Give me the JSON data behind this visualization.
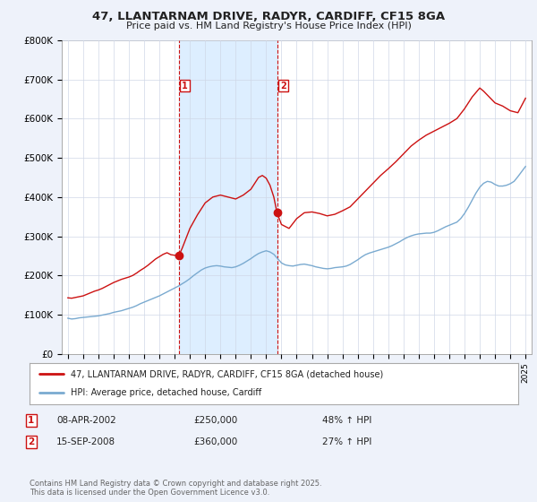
{
  "title": "47, LLANTARNAM DRIVE, RADYR, CARDIFF, CF15 8GA",
  "subtitle": "Price paid vs. HM Land Registry's House Price Index (HPI)",
  "ylim": [
    0,
    800000
  ],
  "yticks": [
    0,
    100000,
    200000,
    300000,
    400000,
    500000,
    600000,
    700000,
    800000
  ],
  "ytick_labels": [
    "£0",
    "£100K",
    "£200K",
    "£300K",
    "£400K",
    "£500K",
    "£600K",
    "£700K",
    "£800K"
  ],
  "xlim_start": 1994.6,
  "xlim_end": 2025.4,
  "background_color": "#eef2fa",
  "plot_bg_color": "#ffffff",
  "grid_color": "#d0d8e8",
  "red_line_color": "#cc1111",
  "blue_line_color": "#7aaad0",
  "vline_color": "#cc1111",
  "shade_color": "#ddeeff",
  "marker1_x": 2002.27,
  "marker2_x": 2008.71,
  "marker1_y": 250000,
  "marker2_y": 360000,
  "transaction1": {
    "label": "1",
    "date": "08-APR-2002",
    "price": "£250,000",
    "hpi": "48% ↑ HPI"
  },
  "transaction2": {
    "label": "2",
    "date": "15-SEP-2008",
    "price": "£360,000",
    "hpi": "27% ↑ HPI"
  },
  "legend_line1": "47, LLANTARNAM DRIVE, RADYR, CARDIFF, CF15 8GA (detached house)",
  "legend_line2": "HPI: Average price, detached house, Cardiff",
  "footer": "Contains HM Land Registry data © Crown copyright and database right 2025.\nThis data is licensed under the Open Government Licence v3.0.",
  "hpi_x": [
    1995.0,
    1995.25,
    1995.5,
    1995.75,
    1996.0,
    1996.25,
    1996.5,
    1996.75,
    1997.0,
    1997.25,
    1997.5,
    1997.75,
    1998.0,
    1998.25,
    1998.5,
    1998.75,
    1999.0,
    1999.25,
    1999.5,
    1999.75,
    2000.0,
    2000.25,
    2000.5,
    2000.75,
    2001.0,
    2001.25,
    2001.5,
    2001.75,
    2002.0,
    2002.25,
    2002.5,
    2002.75,
    2003.0,
    2003.25,
    2003.5,
    2003.75,
    2004.0,
    2004.25,
    2004.5,
    2004.75,
    2005.0,
    2005.25,
    2005.5,
    2005.75,
    2006.0,
    2006.25,
    2006.5,
    2006.75,
    2007.0,
    2007.25,
    2007.5,
    2007.75,
    2008.0,
    2008.25,
    2008.5,
    2008.75,
    2009.0,
    2009.25,
    2009.5,
    2009.75,
    2010.0,
    2010.25,
    2010.5,
    2010.75,
    2011.0,
    2011.25,
    2011.5,
    2011.75,
    2012.0,
    2012.25,
    2012.5,
    2012.75,
    2013.0,
    2013.25,
    2013.5,
    2013.75,
    2014.0,
    2014.25,
    2014.5,
    2014.75,
    2015.0,
    2015.25,
    2015.5,
    2015.75,
    2016.0,
    2016.25,
    2016.5,
    2016.75,
    2017.0,
    2017.25,
    2017.5,
    2017.75,
    2018.0,
    2018.25,
    2018.5,
    2018.75,
    2019.0,
    2019.25,
    2019.5,
    2019.75,
    2020.0,
    2020.25,
    2020.5,
    2020.75,
    2021.0,
    2021.25,
    2021.5,
    2021.75,
    2022.0,
    2022.25,
    2022.5,
    2022.75,
    2023.0,
    2023.25,
    2023.5,
    2023.75,
    2024.0,
    2024.25,
    2024.5,
    2024.75,
    2025.0
  ],
  "hpi_y": [
    91000,
    89000,
    90000,
    92000,
    93000,
    94000,
    95000,
    96000,
    97000,
    99000,
    101000,
    103000,
    106000,
    108000,
    110000,
    113000,
    116000,
    119000,
    123000,
    128000,
    132000,
    136000,
    140000,
    144000,
    148000,
    153000,
    158000,
    163000,
    168000,
    173000,
    179000,
    185000,
    192000,
    200000,
    207000,
    214000,
    219000,
    222000,
    224000,
    225000,
    224000,
    222000,
    221000,
    220000,
    222000,
    226000,
    231000,
    237000,
    243000,
    250000,
    256000,
    260000,
    263000,
    260000,
    254000,
    243000,
    232000,
    227000,
    225000,
    224000,
    226000,
    228000,
    229000,
    227000,
    225000,
    222000,
    220000,
    218000,
    217000,
    218000,
    220000,
    221000,
    222000,
    224000,
    228000,
    234000,
    240000,
    247000,
    253000,
    257000,
    260000,
    263000,
    266000,
    269000,
    272000,
    276000,
    281000,
    286000,
    292000,
    297000,
    301000,
    304000,
    306000,
    307000,
    308000,
    308000,
    310000,
    314000,
    319000,
    324000,
    328000,
    332000,
    336000,
    345000,
    358000,
    374000,
    392000,
    410000,
    425000,
    435000,
    440000,
    438000,
    432000,
    428000,
    428000,
    430000,
    434000,
    440000,
    452000,
    465000,
    478000
  ],
  "prop_x": [
    1995.0,
    1995.25,
    1995.5,
    1995.75,
    1996.0,
    1996.25,
    1996.5,
    1996.75,
    1997.0,
    1997.25,
    1997.5,
    1997.75,
    1998.0,
    1998.25,
    1998.5,
    1998.75,
    1999.0,
    1999.25,
    1999.5,
    1999.75,
    2000.0,
    2000.25,
    2000.5,
    2000.75,
    2001.0,
    2001.25,
    2001.5,
    2001.75,
    2002.27,
    2002.5,
    2002.75,
    2003.0,
    2003.5,
    2004.0,
    2004.5,
    2005.0,
    2005.5,
    2006.0,
    2006.5,
    2007.0,
    2007.25,
    2007.5,
    2007.75,
    2008.0,
    2008.25,
    2008.5,
    2008.71,
    2009.0,
    2009.5,
    2010.0,
    2010.5,
    2011.0,
    2011.5,
    2012.0,
    2012.5,
    2013.0,
    2013.5,
    2014.0,
    2014.5,
    2015.0,
    2015.5,
    2016.0,
    2016.5,
    2017.0,
    2017.5,
    2018.0,
    2018.5,
    2019.0,
    2019.5,
    2020.0,
    2020.5,
    2021.0,
    2021.5,
    2022.0,
    2022.25,
    2022.5,
    2022.75,
    2023.0,
    2023.5,
    2024.0,
    2024.5,
    2025.0
  ],
  "prop_y": [
    143000,
    142000,
    144000,
    146000,
    148000,
    152000,
    156000,
    160000,
    163000,
    167000,
    172000,
    177000,
    182000,
    186000,
    190000,
    193000,
    196000,
    200000,
    206000,
    213000,
    219000,
    226000,
    234000,
    242000,
    248000,
    254000,
    258000,
    253000,
    250000,
    270000,
    295000,
    320000,
    355000,
    385000,
    400000,
    405000,
    400000,
    395000,
    405000,
    420000,
    435000,
    450000,
    455000,
    448000,
    430000,
    400000,
    360000,
    330000,
    320000,
    345000,
    360000,
    362000,
    358000,
    352000,
    356000,
    365000,
    375000,
    395000,
    415000,
    435000,
    455000,
    472000,
    490000,
    510000,
    530000,
    545000,
    558000,
    568000,
    578000,
    588000,
    600000,
    625000,
    655000,
    678000,
    670000,
    660000,
    650000,
    640000,
    632000,
    620000,
    615000,
    652000
  ]
}
